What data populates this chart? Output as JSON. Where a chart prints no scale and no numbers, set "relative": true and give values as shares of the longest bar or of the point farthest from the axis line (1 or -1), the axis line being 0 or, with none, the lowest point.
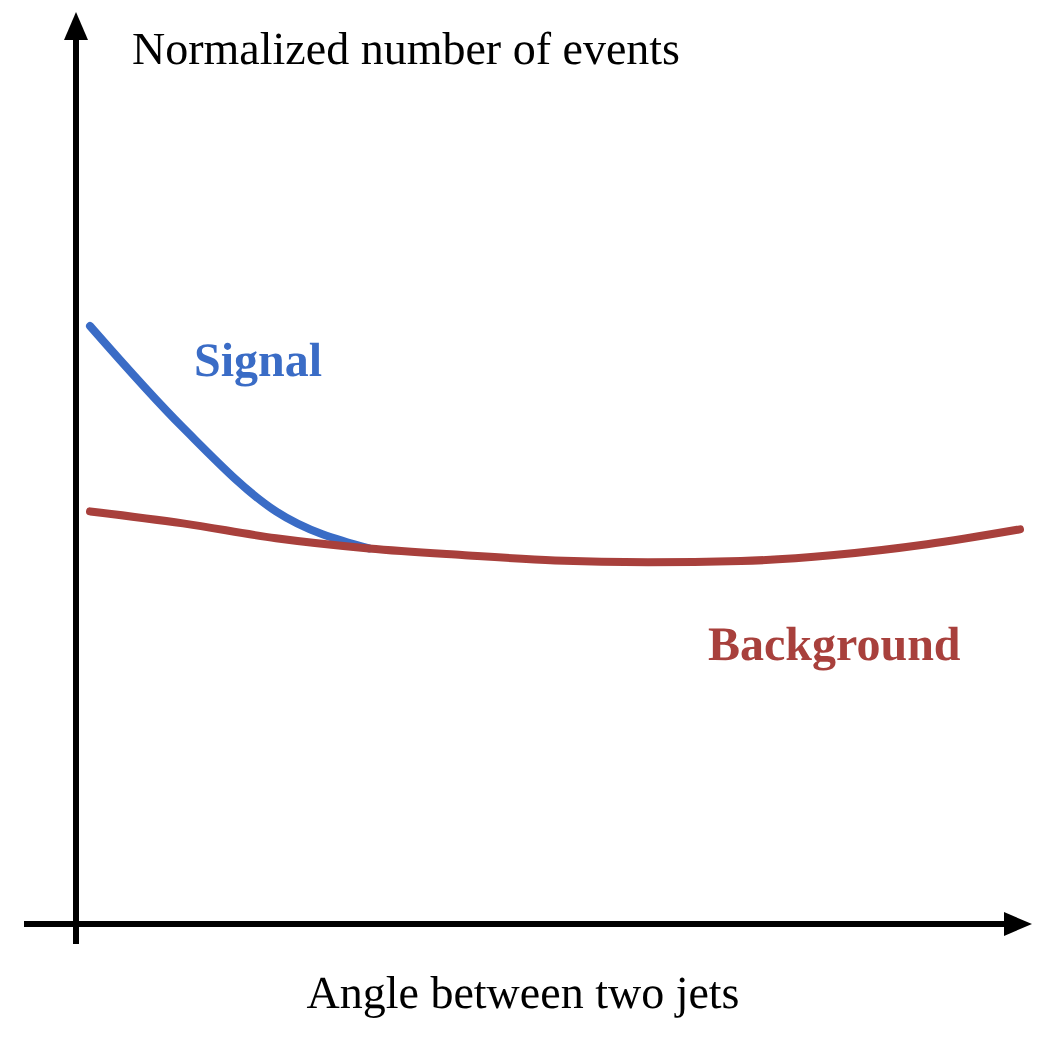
{
  "chart_data": {
    "type": "line",
    "relative": true,
    "annotations": [
      "Normalized number of events"
    ],
    "xlabel": "Angle between two jets",
    "categories": [
      null,
      null,
      null,
      null,
      null,
      null,
      null,
      null,
      null,
      null,
      null
    ],
    "series": [
      {
        "name": "Signal",
        "color": "#3a6cc6",
        "values": [
          1.0,
          0.83,
          0.69,
          0.628,
          null,
          null,
          null,
          null,
          null,
          null,
          null
        ]
      },
      {
        "name": "Background",
        "color": "#a8403c",
        "values": [
          0.69,
          0.67,
          0.645,
          0.628,
          0.617,
          0.608,
          0.605,
          0.607,
          0.617,
          0.635,
          0.66
        ]
      }
    ]
  }
}
